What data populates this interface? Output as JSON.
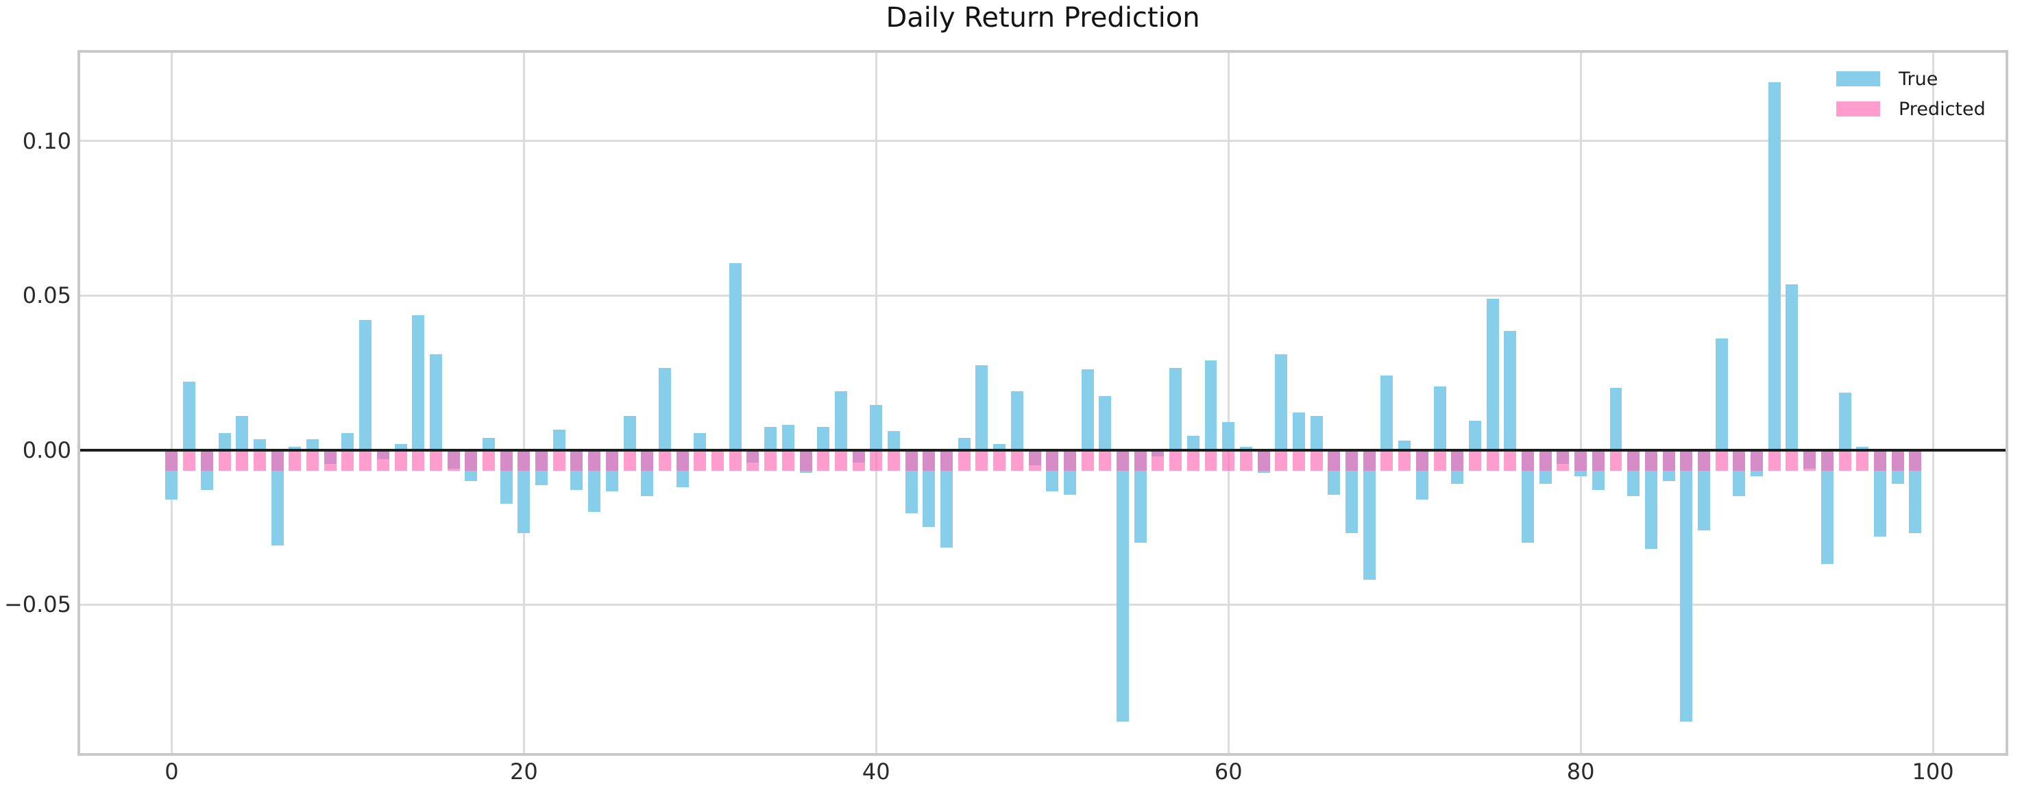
{
  "title": "Daily Return Prediction",
  "legend": {
    "items": [
      {
        "label": "True",
        "color": "#87CEEB"
      },
      {
        "label": "Predicted",
        "color": "rgba(255,105,180,0.65)"
      }
    ]
  },
  "axis": {
    "xtick_labels": [
      "0",
      "20",
      "40",
      "60",
      "80",
      "100"
    ],
    "ytick_labels": [
      "0.10",
      "0.05",
      "0.00",
      "−0.05"
    ]
  },
  "chart_data": {
    "type": "bar",
    "title": "Daily Return Prediction",
    "x_start": 0,
    "x_step": 1,
    "n_points": 100,
    "series": [
      {
        "name": "True",
        "color": "#87CEEB",
        "values": [
          -0.016,
          0.022,
          -0.013,
          0.0055,
          0.011,
          0.0035,
          -0.031,
          0.001,
          0.0035,
          -0.0045,
          0.0055,
          0.042,
          -0.003,
          0.002,
          0.0435,
          0.031,
          -0.006,
          -0.01,
          0.004,
          -0.0175,
          -0.027,
          -0.0115,
          0.0065,
          -0.013,
          -0.02,
          -0.0135,
          0.011,
          -0.015,
          0.0265,
          -0.012,
          0.0055,
          0.0,
          0.0605,
          -0.004,
          0.0075,
          0.008,
          -0.0075,
          0.0075,
          0.019,
          -0.004,
          0.0145,
          0.006,
          -0.0205,
          -0.025,
          -0.0315,
          0.004,
          0.0275,
          0.002,
          0.019,
          -0.005,
          -0.0135,
          -0.0145,
          0.026,
          0.0175,
          -0.088,
          -0.03,
          -0.002,
          0.0265,
          0.0045,
          0.029,
          0.009,
          0.001,
          -0.0075,
          0.031,
          0.012,
          0.011,
          -0.0145,
          -0.027,
          -0.042,
          0.024,
          0.003,
          -0.016,
          0.0205,
          -0.011,
          0.0095,
          0.049,
          0.0385,
          -0.03,
          -0.011,
          -0.0045,
          -0.0085,
          -0.013,
          0.02,
          -0.015,
          -0.032,
          -0.01,
          -0.088,
          -0.026,
          0.036,
          -0.015,
          -0.0085,
          0.119,
          0.0535,
          -0.006,
          -0.037,
          0.0185,
          0.001,
          -0.028,
          -0.011,
          -0.027
        ]
      },
      {
        "name": "Predicted",
        "color": "rgba(255,105,180,0.65)",
        "values": [
          -0.0067,
          -0.0067,
          -0.0067,
          -0.0067,
          -0.0067,
          -0.0067,
          -0.0067,
          -0.0067,
          -0.0067,
          -0.0067,
          -0.0067,
          -0.0067,
          -0.0067,
          -0.0067,
          -0.0067,
          -0.0067,
          -0.0067,
          -0.0067,
          -0.0067,
          -0.0067,
          -0.0067,
          -0.0067,
          -0.0067,
          -0.0067,
          -0.0067,
          -0.0067,
          -0.0067,
          -0.0067,
          -0.0067,
          -0.0067,
          -0.0067,
          -0.0067,
          -0.0067,
          -0.0067,
          -0.0067,
          -0.0067,
          -0.0067,
          -0.0067,
          -0.0067,
          -0.0067,
          -0.0067,
          -0.0067,
          -0.0067,
          -0.0067,
          -0.0067,
          -0.0067,
          -0.0067,
          -0.0067,
          -0.0067,
          -0.0067,
          -0.0067,
          -0.0067,
          -0.0067,
          -0.0067,
          -0.0067,
          -0.0067,
          -0.0067,
          -0.0067,
          -0.0067,
          -0.0067,
          -0.0067,
          -0.0067,
          -0.0067,
          -0.0067,
          -0.0067,
          -0.0067,
          -0.0067,
          -0.0067,
          -0.0067,
          -0.0067,
          -0.0067,
          -0.0067,
          -0.0067,
          -0.0067,
          -0.0067,
          -0.0067,
          -0.0067,
          -0.0067,
          -0.0067,
          -0.0067,
          -0.0067,
          -0.0067,
          -0.0067,
          -0.0067,
          -0.0067,
          -0.0067,
          -0.0067,
          -0.0067,
          -0.0067,
          -0.0067,
          -0.0067,
          -0.0067,
          -0.0067,
          -0.0067,
          -0.0067,
          -0.0067,
          -0.0067,
          -0.0067,
          -0.0067,
          -0.0067
        ]
      }
    ],
    "xticks": [
      0,
      20,
      40,
      60,
      80,
      100
    ],
    "yticks": [
      0.1,
      0.05,
      0.0,
      -0.05
    ],
    "xlim": [
      -5.35,
      104.28
    ],
    "ylim": [
      -0.099,
      0.1294
    ],
    "bar_width": 0.7,
    "grid": true,
    "zero_line_color": "#1c1c1c",
    "legend_position": "upper right"
  }
}
